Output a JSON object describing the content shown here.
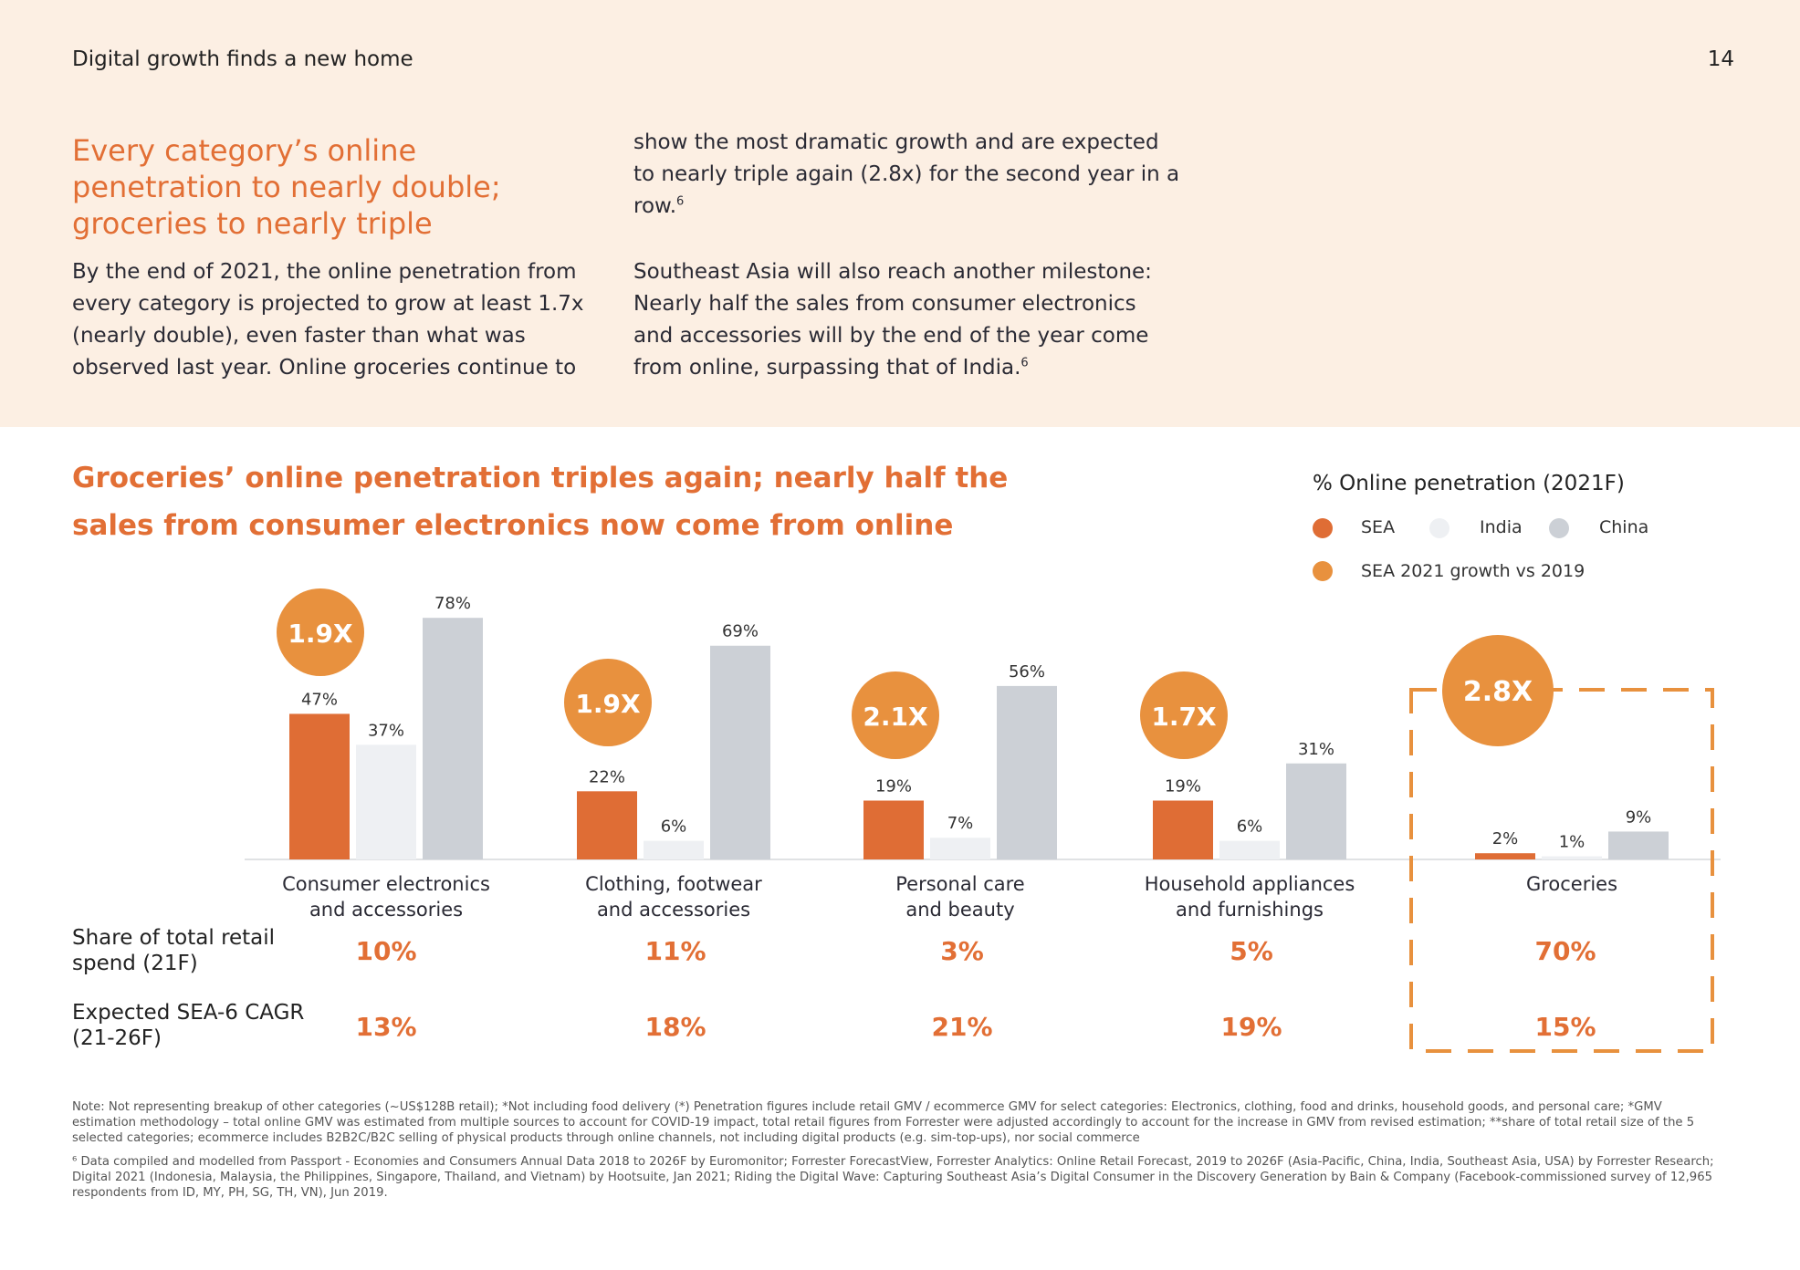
{
  "header": {
    "section_title": "Digital growth finds a new home",
    "page_number": "14"
  },
  "intro": {
    "headline": "Every category’s online penetration to nearly double; groceries to nearly triple",
    "left_paragraph": "By the end of 2021, the online penetration from every category is projected to grow at least 1.7x (nearly double), even faster than what was observed last year. Online groceries continue to",
    "right_paragraph_1": "show the most dramatic growth and are expected to nearly triple again (2.8x) for the second year in a row.",
    "right_paragraph_1_ref": "6",
    "right_paragraph_2": "Southeast Asia will also reach another milestone: Nearly half the sales from consumer electronics and accessories will by the end of the year come from online, surpassing that of India.",
    "right_paragraph_2_ref": "6"
  },
  "chart_data": {
    "type": "bar",
    "title": "Groceries’ online penetration triples again; nearly half the sales from consumer electronics now come from online",
    "legend_title": "% Online penetration (2021F)",
    "legend": [
      {
        "name": "SEA",
        "color": "#df6d35"
      },
      {
        "name": "India",
        "color": "#eef0f3"
      },
      {
        "name": "China",
        "color": "#ccd0d6"
      },
      {
        "name": "SEA 2021 growth vs 2019",
        "color": "#e8913e"
      }
    ],
    "categories": [
      [
        "Consumer electronics",
        "and accessories"
      ],
      [
        "Clothing, footwear",
        "and accessories"
      ],
      [
        "Personal care",
        "and beauty"
      ],
      [
        "Household appliances",
        "and furnishings"
      ],
      [
        "Groceries"
      ]
    ],
    "series": [
      {
        "name": "SEA",
        "values": [
          47,
          22,
          19,
          19,
          2
        ],
        "labels": [
          "47%",
          "22%",
          "19%",
          "19%",
          "2%"
        ]
      },
      {
        "name": "India",
        "values": [
          37,
          6,
          7,
          6,
          1
        ],
        "labels": [
          "37%",
          "6%",
          "7%",
          "6%",
          "1%"
        ]
      },
      {
        "name": "China",
        "values": [
          78,
          69,
          56,
          31,
          9
        ],
        "labels": [
          "78%",
          "69%",
          "56%",
          "31%",
          "9%"
        ]
      }
    ],
    "growth": [
      "1.9X",
      "1.9X",
      "2.1X",
      "1.7X",
      "2.8X"
    ],
    "highlighted_category": "Groceries",
    "rows": [
      {
        "label": "Share of total retail spend (21F)",
        "values": [
          "10%",
          "11%",
          "3%",
          "5%",
          "70%"
        ]
      },
      {
        "label": "Expected SEA-6 CAGR (21-26F)",
        "values": [
          "13%",
          "18%",
          "21%",
          "19%",
          "15%"
        ]
      }
    ],
    "colors": {
      "sea": "#df6d35",
      "india": "#eef0f3",
      "china": "#ccd0d6",
      "growth": "#e8913e",
      "accent": "#e26f35"
    }
  },
  "footnotes": [
    "Note: Not representing breakup of other categories (~US$128B retail); *Not including food delivery (*) Penetration figures include retail GMV / ecommerce GMV for select categories: Electronics, clothing, food and drinks, household goods, and personal care; *GMV estimation methodology – total online GMV was estimated from multiple sources to account for COVID-19 impact, total retail figures from Forrester were adjusted accordingly to account for the increase in GMV from revised estimation; **share of total retail size of the 5 selected categories; ecommerce includes B2B2C/B2C selling of physical products through online channels, not including digital products (e.g. sim-top-ups), nor social commerce",
    "⁶ Data compiled and modelled from Passport - Economies and Consumers Annual Data 2018 to 2026F by Euromonitor; Forrester ForecastView, Forrester Analytics: Online Retail Forecast, 2019 to 2026F (Asia-Pacific, China, India, Southeast Asia, USA) by Forrester Research; Digital 2021 (Indonesia, Malaysia, the Philippines, Singapore, Thailand, and Vietnam) by Hootsuite, Jan 2021; Riding the Digital Wave: Capturing Southeast Asia’s Digital Consumer in the Discovery Generation by Bain & Company (Facebook-commissioned survey of 12,965 respondents from ID, MY, PH, SG, TH, VN), Jun 2019."
  ]
}
